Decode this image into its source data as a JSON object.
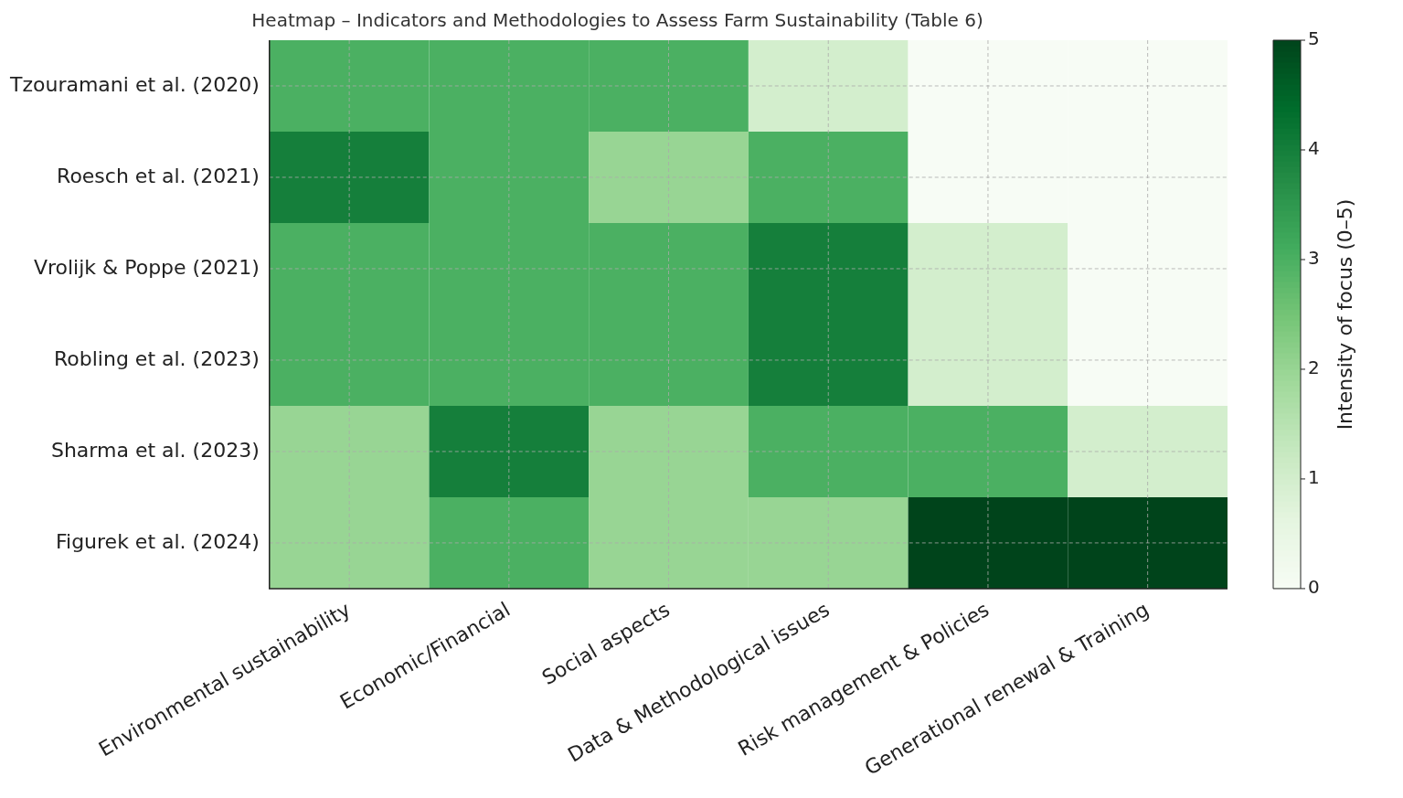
{
  "chart_data": {
    "type": "heatmap",
    "title": "Heatmap – Indicators and Methodologies to Assess Farm Sustainability (Table 6)",
    "clabel": "Intensity of focus (0–5)",
    "categories": [
      "Environmental sustainability",
      "Economic/Financial",
      "Social aspects",
      "Data & Methodological issues",
      "Risk management & Policies",
      "Generational renewal & Training"
    ],
    "y_categories": [
      "Tzouramani et al. (2020)",
      "Roesch et al. (2021)",
      "Vrolijk & Poppe (2021)",
      "Robling et al. (2023)",
      "Sharma et al. (2023)",
      "Figurek et al. (2024)"
    ],
    "cells": [
      [
        3,
        3,
        3,
        1,
        0,
        0
      ],
      [
        4,
        3,
        2,
        3,
        0,
        0
      ],
      [
        3,
        3,
        3,
        4,
        1,
        0
      ],
      [
        3,
        3,
        3,
        4,
        1,
        0
      ],
      [
        2,
        4,
        2,
        3,
        3,
        1
      ],
      [
        2,
        3,
        2,
        2,
        5,
        5
      ]
    ],
    "clim": [
      0,
      5
    ],
    "cticks": [
      0,
      1,
      2,
      3,
      4,
      5
    ],
    "grid": true
  }
}
